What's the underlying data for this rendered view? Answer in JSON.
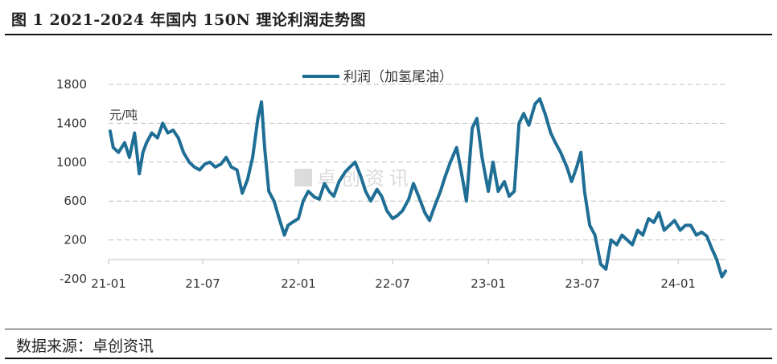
{
  "header": {
    "title": "图 1 2021-2024 年国内 150N 理论利润走势图"
  },
  "footer": {
    "source": "数据来源：卓创资讯"
  },
  "colors": {
    "series": "#1f6e95",
    "grid": "#bfbfbf"
  },
  "chart_data": {
    "type": "line",
    "ylabel": "元/吨",
    "ylim": [
      -200,
      1800
    ],
    "yticks": [
      -200,
      200,
      600,
      1000,
      1400,
      1800
    ],
    "xticks": [
      "21-01",
      "21-07",
      "22-01",
      "22-07",
      "23-01",
      "23-07",
      "24-01"
    ],
    "xlim": [
      "2021-01",
      "2024-04"
    ],
    "legend": "top-center",
    "grid": true,
    "series": [
      {
        "name": "利润（加氢尾油）",
        "x": [
          "2021-01-04",
          "2021-01-10",
          "2021-01-20",
          "2021-02-01",
          "2021-02-10",
          "2021-02-20",
          "2021-03-01",
          "2021-03-08",
          "2021-03-15",
          "2021-03-25",
          "2021-04-05",
          "2021-04-15",
          "2021-04-25",
          "2021-05-05",
          "2021-05-15",
          "2021-05-25",
          "2021-06-05",
          "2021-06-15",
          "2021-06-25",
          "2021-07-05",
          "2021-07-15",
          "2021-07-25",
          "2021-08-05",
          "2021-08-15",
          "2021-08-25",
          "2021-09-05",
          "2021-09-15",
          "2021-09-25",
          "2021-10-05",
          "2021-10-15",
          "2021-10-22",
          "2021-10-28",
          "2021-11-05",
          "2021-11-15",
          "2021-11-25",
          "2021-12-05",
          "2021-12-12",
          "2021-12-20",
          "2022-01-01",
          "2022-01-10",
          "2022-01-20",
          "2022-02-01",
          "2022-02-10",
          "2022-02-20",
          "2022-03-01",
          "2022-03-10",
          "2022-03-20",
          "2022-04-01",
          "2022-04-10",
          "2022-04-20",
          "2022-05-01",
          "2022-05-10",
          "2022-05-20",
          "2022-06-01",
          "2022-06-10",
          "2022-06-20",
          "2022-07-01",
          "2022-07-10",
          "2022-07-20",
          "2022-08-01",
          "2022-08-10",
          "2022-08-20",
          "2022-09-01",
          "2022-09-10",
          "2022-09-20",
          "2022-10-01",
          "2022-10-10",
          "2022-10-20",
          "2022-11-01",
          "2022-11-10",
          "2022-11-20",
          "2022-12-01",
          "2022-12-10",
          "2022-12-20",
          "2023-01-01",
          "2023-01-10",
          "2023-01-20",
          "2023-02-01",
          "2023-02-10",
          "2023-02-20",
          "2023-03-01",
          "2023-03-10",
          "2023-03-20",
          "2023-04-01",
          "2023-04-10",
          "2023-04-20",
          "2023-05-01",
          "2023-05-10",
          "2023-05-20",
          "2023-06-01",
          "2023-06-10",
          "2023-06-20",
          "2023-06-28",
          "2023-07-05",
          "2023-07-15",
          "2023-07-25",
          "2023-08-05",
          "2023-08-15",
          "2023-08-25",
          "2023-09-05",
          "2023-09-15",
          "2023-09-25",
          "2023-10-05",
          "2023-10-15",
          "2023-10-25",
          "2023-11-05",
          "2023-11-15",
          "2023-11-25",
          "2023-12-05",
          "2023-12-15",
          "2023-12-25",
          "2024-01-05",
          "2024-01-15",
          "2024-01-25",
          "2024-02-05",
          "2024-02-15",
          "2024-02-25",
          "2024-03-05",
          "2024-03-15",
          "2024-03-25",
          "2024-04-01"
        ],
        "values": [
          1320,
          1150,
          1100,
          1200,
          1050,
          1300,
          880,
          1100,
          1200,
          1300,
          1250,
          1400,
          1300,
          1330,
          1250,
          1100,
          1000,
          950,
          920,
          980,
          1000,
          950,
          980,
          1050,
          950,
          920,
          680,
          820,
          1050,
          1450,
          1620,
          1150,
          700,
          600,
          420,
          250,
          350,
          380,
          420,
          600,
          700,
          640,
          620,
          780,
          700,
          650,
          800,
          900,
          950,
          1000,
          850,
          700,
          600,
          720,
          650,
          500,
          420,
          450,
          500,
          620,
          780,
          650,
          480,
          400,
          550,
          700,
          850,
          1000,
          1150,
          900,
          600,
          1350,
          1450,
          1050,
          700,
          1000,
          700,
          800,
          650,
          700,
          1400,
          1500,
          1380,
          1600,
          1650,
          1500,
          1300,
          1200,
          1100,
          950,
          800,
          950,
          1100,
          700,
          350,
          250,
          -50,
          -100,
          200,
          150,
          250,
          200,
          150,
          300,
          250,
          420,
          380,
          480,
          300,
          350,
          400,
          300,
          350,
          350,
          250,
          280,
          240,
          120,
          0,
          -180,
          -120
        ]
      }
    ]
  }
}
